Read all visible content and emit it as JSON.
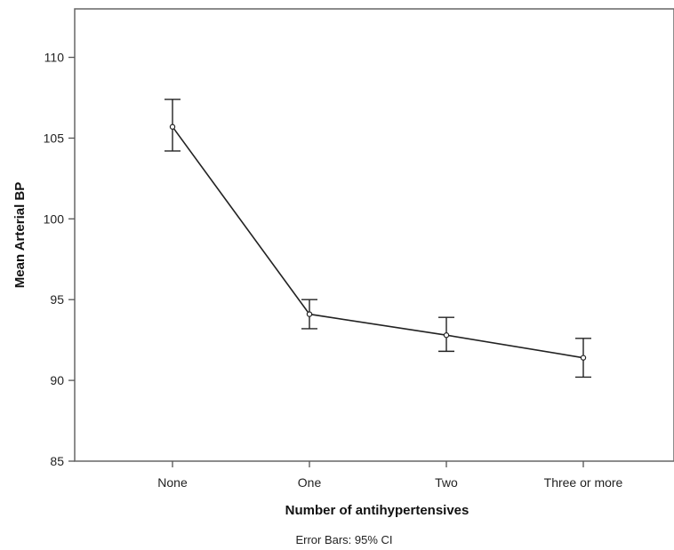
{
  "chart_data": {
    "type": "line",
    "categories": [
      "None",
      "One",
      "Two",
      "Three or more"
    ],
    "series": [
      {
        "values": [
          105.7,
          94.1,
          92.8,
          91.4
        ],
        "ci_lower": [
          104.2,
          93.2,
          91.8,
          90.2
        ],
        "ci_upper": [
          107.4,
          95.0,
          93.9,
          92.6
        ]
      }
    ],
    "xlabel": "Number of antihypertensives",
    "ylabel": "Mean Arterial BP",
    "ylim": [
      85,
      113
    ],
    "yticks": [
      85,
      90,
      95,
      100,
      105,
      110
    ],
    "grid": false,
    "note": "Error Bars: 95% CI",
    "line_color": "#222222",
    "frame_color": "#666666"
  }
}
